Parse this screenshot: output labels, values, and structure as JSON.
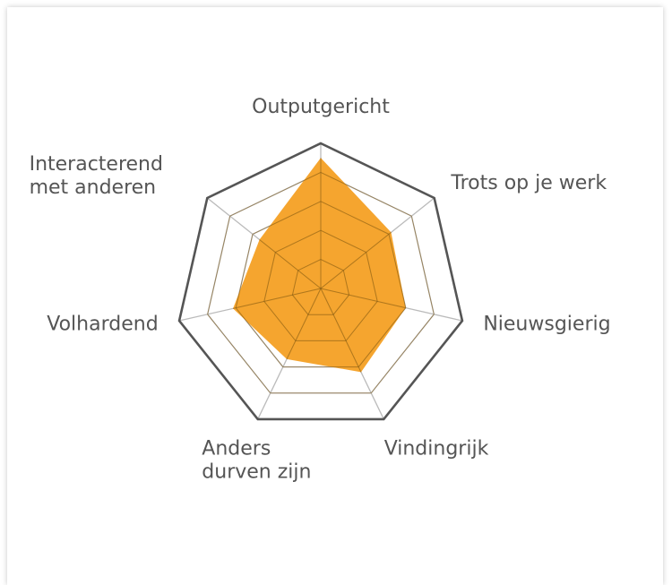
{
  "chart_data": {
    "type": "radar",
    "axes": [
      "Outputgericht",
      "Trots op je werk",
      "Nieuwsgierig",
      "Vindingrijk",
      "Anders durven zijn",
      "Volhardend",
      "Interacterend met anderen"
    ],
    "label_lines": [
      [
        "Outputgericht"
      ],
      [
        "Trots op je werk"
      ],
      [
        "Nieuwsgierig"
      ],
      [
        "Vindingrijk"
      ],
      [
        "Anders",
        "durven zijn"
      ],
      [
        "Volhardend"
      ],
      [
        "Interacterend",
        "met anderen"
      ]
    ],
    "values": [
      4.5,
      3.1,
      3.0,
      3.2,
      2.7,
      3.1,
      2.7
    ],
    "range": [
      0,
      5
    ],
    "rings": 5,
    "colors": {
      "fill": "#f49d1d",
      "grid": "#bbbbbb",
      "outer": "#555555",
      "label": "#555555"
    }
  }
}
